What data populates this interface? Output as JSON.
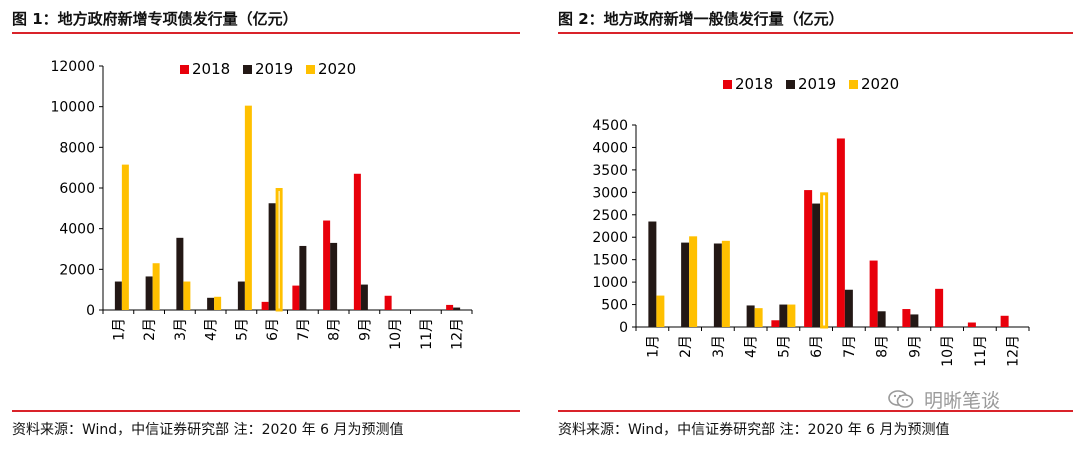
{
  "colors": {
    "s2018": "#e8000b",
    "s2019": "#231815",
    "s2020": "#ffc000",
    "rule": "#d9232a"
  },
  "charts": [
    {
      "title": "图 1：地方政府新增专项债发行量（亿元）",
      "source": "资料来源：Wind，中信证券研究部  注：2020 年 6 月为预测值"
    },
    {
      "title": "图 2：地方政府新增一般债发行量（亿元）",
      "source": "资料来源：Wind，中信证券研究部  注：2020 年 6 月为预测值"
    }
  ],
  "watermark": {
    "text": "明晰笔谈",
    "icon": "wechat-icon"
  },
  "chart_data": [
    {
      "type": "bar",
      "title": "图 1：地方政府新增专项债发行量（亿元）",
      "categories": [
        "1月",
        "2月",
        "3月",
        "4月",
        "5月",
        "6月",
        "7月",
        "8月",
        "9月",
        "10月",
        "11月",
        "12月"
      ],
      "series": [
        {
          "name": "2018",
          "values": [
            0,
            0,
            0,
            0,
            0,
            400,
            1200,
            4400,
            6700,
            700,
            0,
            250
          ]
        },
        {
          "name": "2019",
          "values": [
            1400,
            1650,
            3550,
            600,
            1400,
            5250,
            3150,
            3300,
            1250,
            0,
            0,
            120
          ]
        },
        {
          "name": "2020",
          "values": [
            7150,
            2300,
            1400,
            650,
            10050,
            6000,
            null,
            null,
            null,
            null,
            null,
            null
          ]
        }
      ],
      "forecast": {
        "series": "2020",
        "category": "6月"
      },
      "ylim": [
        0,
        12000
      ],
      "yticks": [
        0,
        2000,
        4000,
        6000,
        8000,
        10000,
        12000
      ],
      "legend": "top",
      "grid": false
    },
    {
      "type": "bar",
      "title": "图 2：地方政府新增一般债发行量（亿元）",
      "categories": [
        "1月",
        "2月",
        "3月",
        "4月",
        "5月",
        "6月",
        "7月",
        "8月",
        "9月",
        "10月",
        "11月",
        "12月"
      ],
      "series": [
        {
          "name": "2018",
          "values": [
            0,
            0,
            0,
            0,
            150,
            3050,
            4200,
            1480,
            400,
            850,
            100,
            250
          ]
        },
        {
          "name": "2019",
          "values": [
            2350,
            1880,
            1860,
            480,
            500,
            2750,
            830,
            350,
            280,
            0,
            0,
            0
          ]
        },
        {
          "name": "2020",
          "values": [
            700,
            2020,
            1920,
            420,
            500,
            3000,
            null,
            null,
            null,
            null,
            null,
            null
          ]
        }
      ],
      "forecast": {
        "series": "2020",
        "category": "6月"
      },
      "ylim": [
        0,
        4500
      ],
      "yticks": [
        0,
        500,
        1000,
        1500,
        2000,
        2500,
        3000,
        3500,
        4000,
        4500
      ],
      "legend": "top",
      "grid": false
    }
  ]
}
